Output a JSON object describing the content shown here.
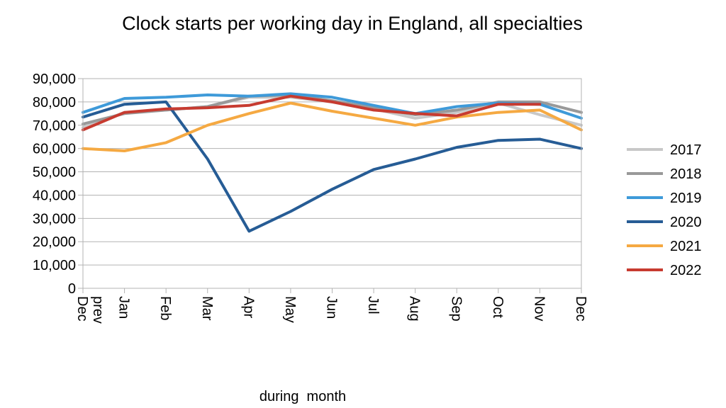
{
  "chart_data": {
    "type": "line",
    "title": "Clock starts per working day in England, all specialties",
    "xlabel": "during  month",
    "ylabel": "",
    "ylim": [
      0,
      90000
    ],
    "yticks": [
      "0",
      "10,000",
      "20,000",
      "30,000",
      "40,000",
      "50,000",
      "60,000",
      "70,000",
      "80,000",
      "90,000"
    ],
    "categories": [
      "Dec prev",
      "Jan",
      "Feb",
      "Mar",
      "Apr",
      "May",
      "Jun",
      "Jul",
      "Aug",
      "Sep",
      "Oct",
      "Nov",
      "Dec"
    ],
    "grid": "horizontal",
    "legend": "right",
    "series": [
      {
        "name": "2017",
        "color": "#c8c8c8",
        "values": [
          69000,
          75500,
          76500,
          78000,
          82000,
          82000,
          80000,
          77000,
          73000,
          75500,
          79500,
          74500,
          70000
        ]
      },
      {
        "name": "2018",
        "color": "#999999",
        "values": [
          70500,
          75000,
          76500,
          78000,
          82500,
          83000,
          80500,
          77500,
          74500,
          76500,
          80000,
          80000,
          75500
        ]
      },
      {
        "name": "2019",
        "color": "#3e9ad9",
        "values": [
          75500,
          81500,
          82000,
          83000,
          82500,
          83500,
          82000,
          78500,
          75000,
          78000,
          79500,
          79000,
          73000
        ]
      },
      {
        "name": "2020",
        "color": "#265c95",
        "values": [
          73500,
          79000,
          80000,
          55500,
          24500,
          33000,
          42500,
          51000,
          55500,
          60500,
          63500,
          64000,
          60000
        ]
      },
      {
        "name": "2021",
        "color": "#f5a942",
        "values": [
          60000,
          59000,
          62500,
          70000,
          75000,
          79500,
          76000,
          73000,
          70000,
          73500,
          75500,
          76500,
          68000
        ]
      },
      {
        "name": "2022",
        "color": "#c73b30",
        "values": [
          68000,
          75500,
          77000,
          77500,
          78500,
          82500,
          80000,
          76500,
          75000,
          74000,
          79000,
          79000,
          null
        ]
      }
    ]
  }
}
